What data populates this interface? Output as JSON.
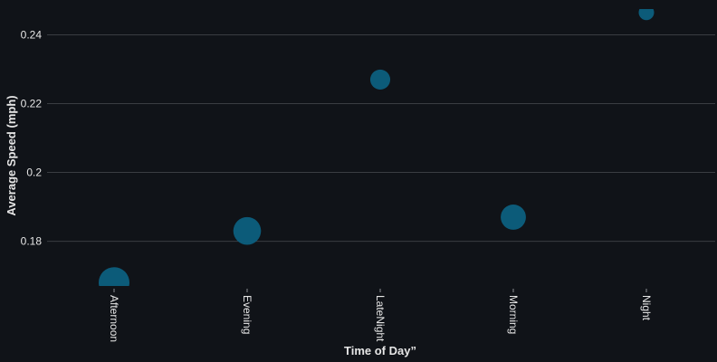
{
  "chart_data": {
    "type": "scatter",
    "xlabel": "Time of Day”",
    "ylabel": "Average Speed (mph)",
    "categories": [
      "Afternoon",
      "Evening",
      "LateNight",
      "Morning",
      "Night"
    ],
    "values": [
      0.168,
      0.183,
      0.227,
      0.187,
      0.2465
    ],
    "relative_sizes": [
      1.0,
      0.9,
      0.65,
      0.82,
      0.5
    ],
    "y_ticks": [
      0.18,
      0.2,
      0.22,
      0.24
    ],
    "y_tick_labels": [
      "0.18",
      "0.2",
      "0.22",
      "0.24"
    ],
    "ylim": [
      0.167,
      0.2475
    ],
    "grid": true,
    "legend": "none",
    "colors": {
      "bubble": "#0d5f7e",
      "background": "#101318",
      "grid": "#3a3d42"
    }
  }
}
